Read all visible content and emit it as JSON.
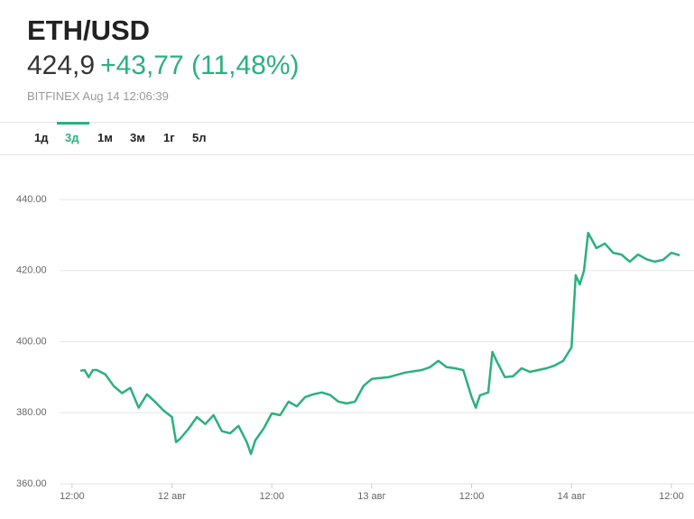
{
  "header": {
    "title": "ETH/USD",
    "price": "424,9",
    "change": "+43,77 (11,48%)",
    "source": "BITFINEX Aug 14 12:06:39"
  },
  "tabs": [
    "1д",
    "3д",
    "1м",
    "3м",
    "1г",
    "5л"
  ],
  "active_tab": 1,
  "chart_data": {
    "type": "line",
    "color": "#2bb07f",
    "grid": true,
    "xlim": [
      -1.5,
      74.5
    ],
    "xticks": [
      {
        "value": 0,
        "label": "12:00"
      },
      {
        "value": 12,
        "label": "12 авг"
      },
      {
        "value": 24,
        "label": "12:00"
      },
      {
        "value": 36,
        "label": "13 авг"
      },
      {
        "value": 48,
        "label": "12:00"
      },
      {
        "value": 60,
        "label": "14 авг"
      },
      {
        "value": 72,
        "label": "12:00"
      }
    ],
    "ylim": [
      360,
      440
    ],
    "yticks": [
      {
        "value": 360,
        "label": "360.00"
      },
      {
        "value": 380,
        "label": "380.00"
      },
      {
        "value": 400,
        "label": "400.00"
      },
      {
        "value": 420,
        "label": "420.00"
      },
      {
        "value": 440,
        "label": "440.00"
      }
    ],
    "x": [
      1,
      1.5,
      2,
      2.5,
      3,
      4,
      5,
      6,
      7,
      8,
      9,
      10,
      11,
      12,
      12.5,
      13,
      14,
      15,
      16,
      17,
      18,
      19,
      20,
      21,
      21.5,
      22,
      23,
      24,
      25,
      26,
      27,
      28,
      29,
      30,
      31,
      32,
      33,
      34,
      35,
      36,
      38,
      40,
      42,
      43,
      44,
      45,
      46,
      47,
      48,
      48.5,
      49,
      50,
      50.5,
      51,
      52,
      53,
      54,
      55,
      56,
      57,
      58,
      59,
      60,
      60.5,
      61,
      61.5,
      62,
      63,
      64,
      65,
      66,
      67,
      68,
      69,
      70,
      71,
      72,
      73
    ],
    "values": [
      391.8,
      392,
      390,
      392,
      392,
      390.8,
      387.5,
      385.5,
      387,
      381.4,
      385.2,
      383,
      380.6,
      378.8,
      371.7,
      372.7,
      375.5,
      378.8,
      376.8,
      379.3,
      374.8,
      374.2,
      376.3,
      371.7,
      368.4,
      372.2,
      375.5,
      379.8,
      379.3,
      383.1,
      381.8,
      384.4,
      385.2,
      385.7,
      385,
      383.1,
      382.6,
      383.1,
      387.5,
      389.5,
      390,
      391.3,
      392,
      392.8,
      394.6,
      392.8,
      392.5,
      392,
      384.4,
      381.4,
      384.9,
      385.7,
      397.1,
      394.6,
      390,
      390.3,
      392.5,
      391.5,
      392,
      392.5,
      393.3,
      394.6,
      398.4,
      418.7,
      416.1,
      420,
      430.6,
      426.3,
      427.6,
      425,
      424.5,
      422.5,
      424.5,
      423.2,
      422.5,
      423,
      425,
      424.3
    ]
  }
}
